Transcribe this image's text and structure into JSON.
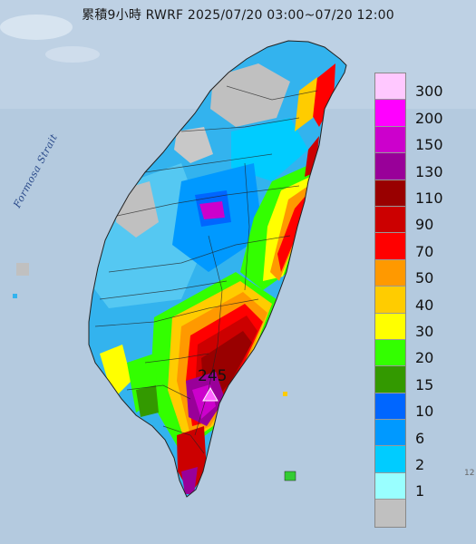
{
  "title": "累積9小時 RWRF 2025/07/20 03:00~07/20 12:00",
  "strait_label": "Formosa Strait",
  "max_value_label": "245",
  "edge_text": "12",
  "legend": {
    "labels": [
      "300",
      "200",
      "150",
      "130",
      "110",
      "90",
      "70",
      "50",
      "40",
      "30",
      "20",
      "15",
      "10",
      "6",
      "2",
      "1"
    ],
    "colors": [
      "#ffc8ff",
      "#ff00ff",
      "#cc00cc",
      "#990099",
      "#990000",
      "#cc0000",
      "#ff0000",
      "#ff9900",
      "#ffcc00",
      "#ffff00",
      "#33ff00",
      "#339900",
      "#0066ff",
      "#0099ff",
      "#00ccff",
      "#99ffff",
      "#c0c0c0"
    ]
  }
}
